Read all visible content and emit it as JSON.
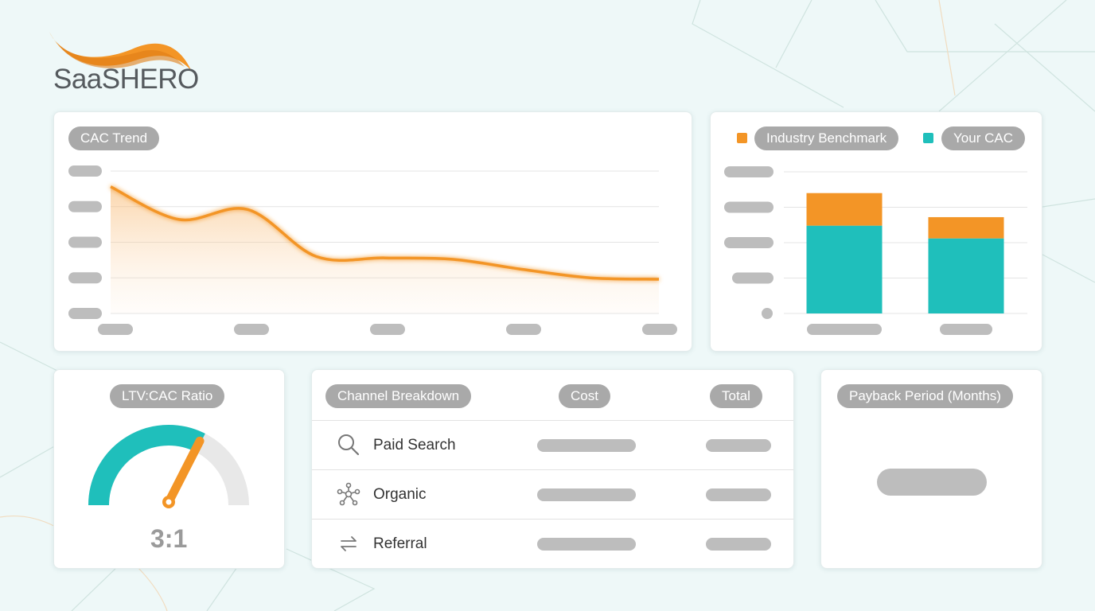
{
  "brand": {
    "name": "SaaSHERO"
  },
  "colors": {
    "orange": "#f39526",
    "teal": "#1fbfbb",
    "placeholder": "#bdbdbd",
    "pill": "#a9a9a9"
  },
  "cac_trend": {
    "title": "CAC Trend",
    "chart_data": {
      "type": "area",
      "title": "CAC Trend",
      "x": [
        0,
        1,
        2,
        3,
        4,
        5,
        6,
        7,
        8
      ],
      "values": [
        89,
        66,
        73,
        40,
        39,
        38,
        31,
        25,
        24
      ],
      "ylim": [
        0,
        100
      ],
      "grid": true,
      "color": "#f39526"
    }
  },
  "cac_compare": {
    "legend": [
      {
        "label": "Industry Benchmark",
        "color": "#f39526"
      },
      {
        "label": "Your CAC",
        "color": "#1fbfbb"
      }
    ],
    "chart_data": {
      "type": "bar",
      "stacked": true,
      "categories": [
        "",
        ""
      ],
      "series": [
        {
          "name": "Your CAC",
          "values": [
            62,
            53
          ],
          "color": "#1fbfbb"
        },
        {
          "name": "Industry Benchmark",
          "values": [
            23,
            15
          ],
          "color": "#f39526"
        }
      ],
      "ylim": [
        0,
        100
      ],
      "grid": true,
      "legend_position": "top"
    }
  },
  "ltv_cac": {
    "title": "LTV:CAC Ratio",
    "value": "3:1",
    "gauge_fraction": 0.65,
    "gauge_color": "#1fbfbb",
    "needle_color": "#f39526"
  },
  "channels": {
    "headers": [
      "Channel Breakdown",
      "Cost",
      "Total"
    ],
    "rows": [
      {
        "icon": "search-icon",
        "label": "Paid Search"
      },
      {
        "icon": "network-icon",
        "label": "Organic"
      },
      {
        "icon": "referral-arrows-icon",
        "label": "Referral"
      }
    ]
  },
  "payback": {
    "title": "Payback Period (Months)"
  }
}
